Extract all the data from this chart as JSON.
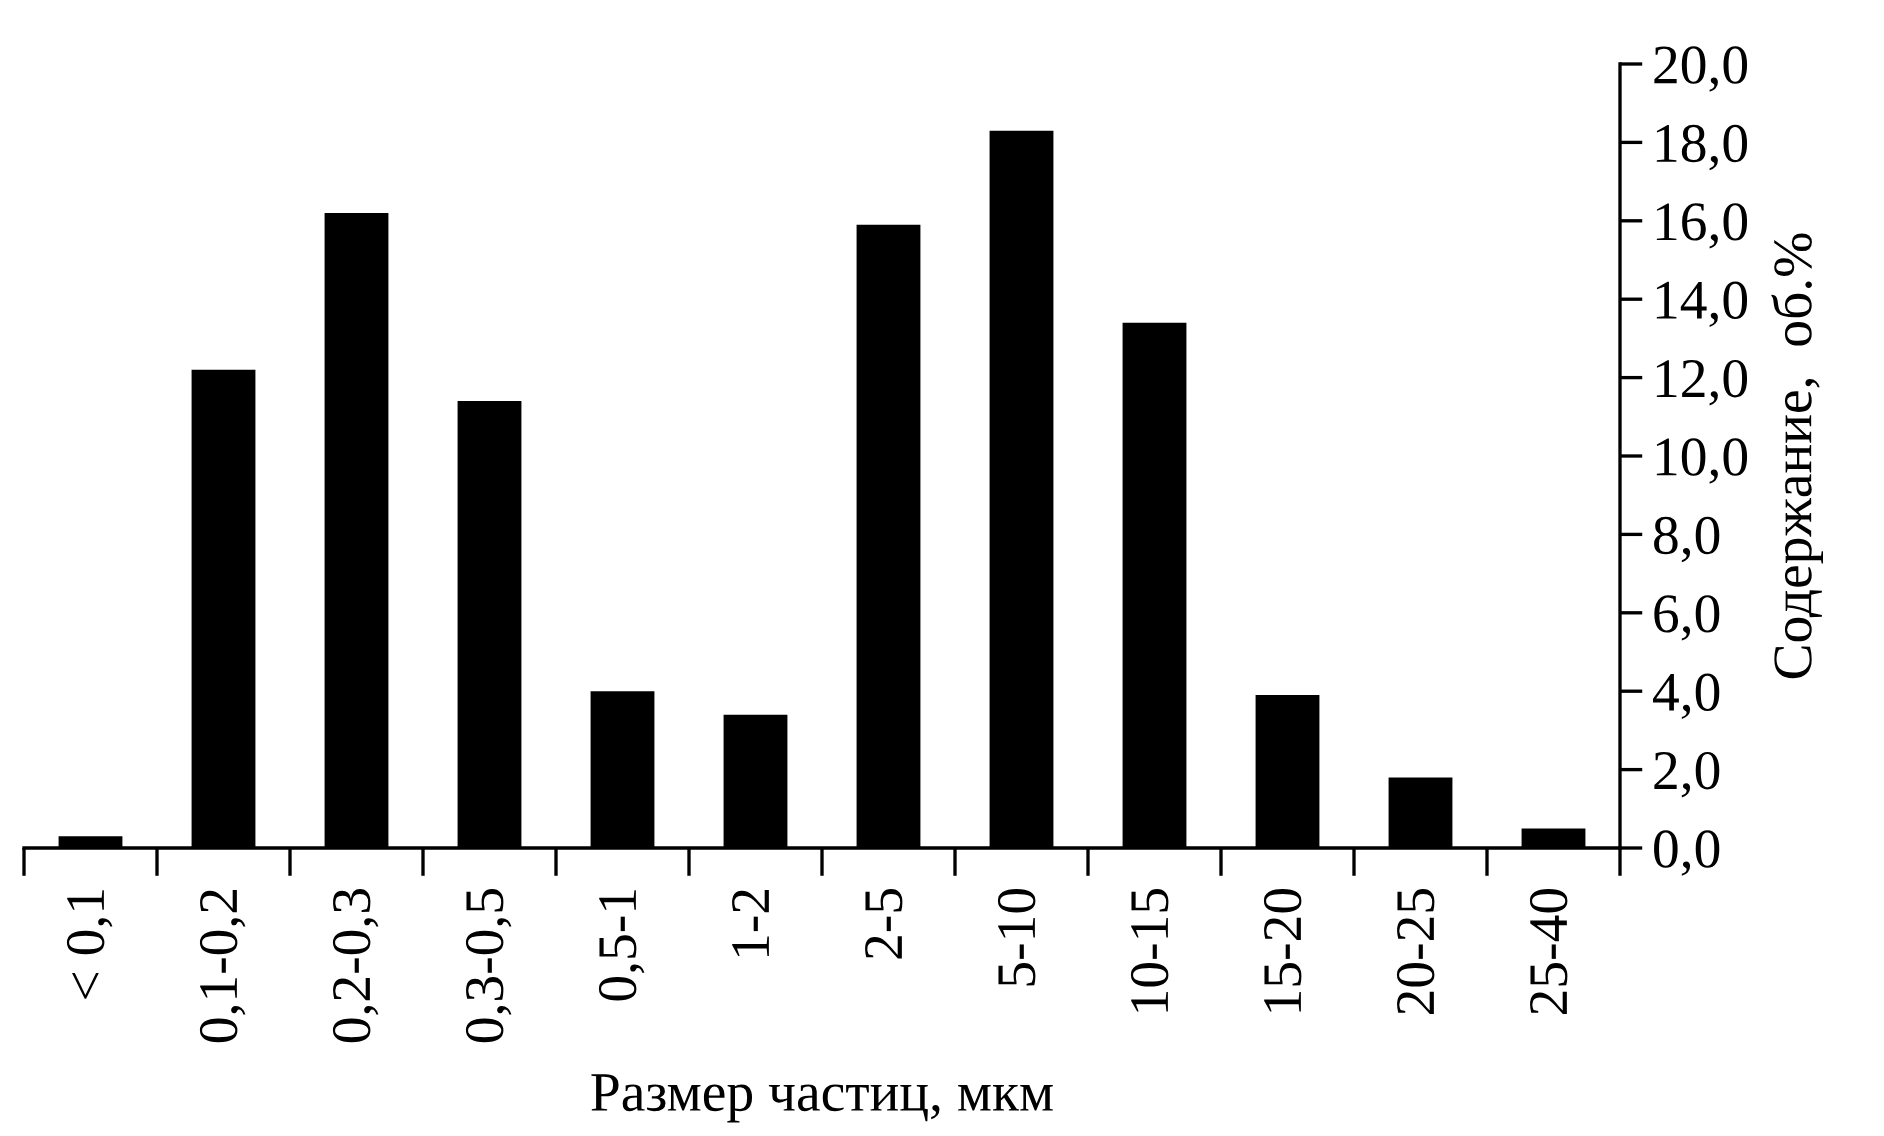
{
  "chart_data": {
    "type": "bar",
    "xlabel": "Размер частиц, мкм",
    "ylabel": "Содержание,  об.%",
    "categories": [
      "< 0,1",
      "0,1-0,2",
      "0,2-0,3",
      "0,3-0,5",
      "0,5-1",
      "1-2",
      "2-5",
      "5-10",
      "10-15",
      "15-20",
      "20-25",
      "25-40"
    ],
    "values": [
      0.3,
      12.2,
      16.2,
      11.4,
      4.0,
      3.4,
      15.9,
      18.3,
      13.4,
      3.9,
      1.8,
      0.5
    ],
    "color": "#000000",
    "ylim": [
      0,
      20
    ],
    "yticks": [
      {
        "value": 0,
        "label": "0,0"
      },
      {
        "value": 2,
        "label": "2,0"
      },
      {
        "value": 4,
        "label": "4,0"
      },
      {
        "value": 6,
        "label": "6,0"
      },
      {
        "value": 8,
        "label": "8,0"
      },
      {
        "value": 10,
        "label": "10,0"
      },
      {
        "value": 12,
        "label": "12,0"
      },
      {
        "value": 14,
        "label": "14,0"
      },
      {
        "value": 16,
        "label": "16,0"
      },
      {
        "value": 18,
        "label": "18,0"
      },
      {
        "value": 20,
        "label": "20,0"
      }
    ],
    "grid": false
  }
}
